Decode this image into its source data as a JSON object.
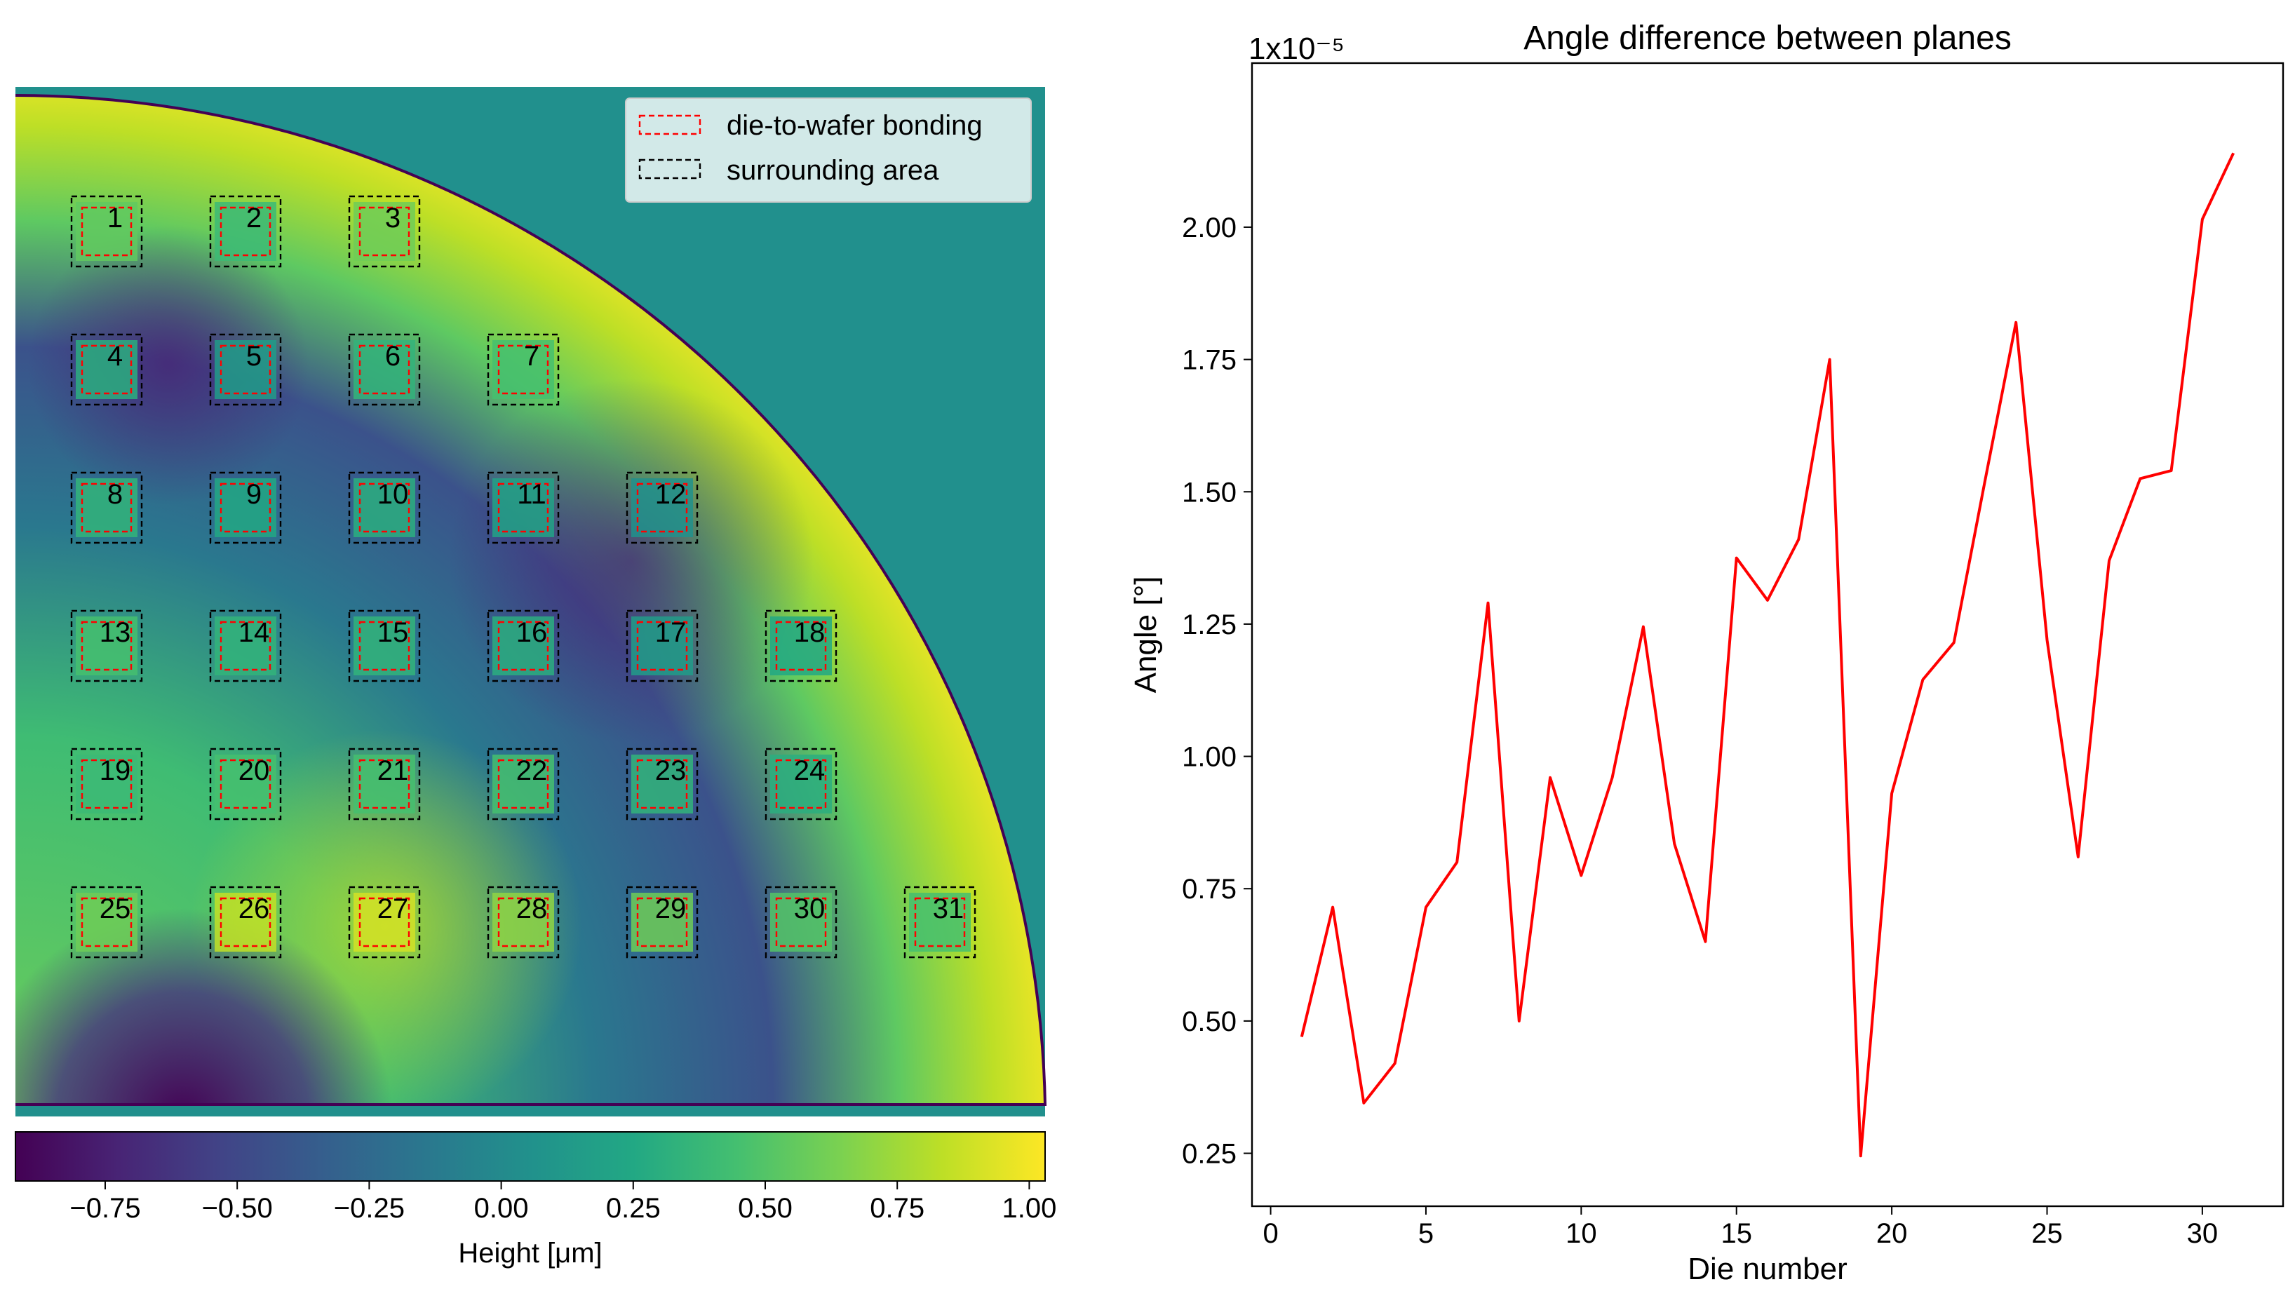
{
  "chart_data": [
    {
      "type": "heatmap",
      "title": "",
      "colorbar": {
        "label": "Height [μm]",
        "range": [
          -0.92,
          1.03
        ],
        "colormap": "viridis",
        "ticks": [
          -0.75,
          -0.5,
          -0.25,
          0.0,
          0.25,
          0.5,
          0.75,
          1.0
        ],
        "tick_labels": [
          "−0.75",
          "−0.50",
          "−0.25",
          "0.00",
          "0.25",
          "0.50",
          "0.75",
          "1.00"
        ]
      },
      "background_color": "#21908d",
      "legend": {
        "position": "top-right",
        "entries": [
          {
            "label": "die-to-wafer bonding",
            "color": "#ff0000",
            "style": "dashed"
          },
          {
            "label": "surrounding area",
            "color": "#000000",
            "style": "dashed"
          }
        ]
      },
      "dies": [
        {
          "label": "1",
          "row": 0,
          "col": 0,
          "height": 0.55
        },
        {
          "label": "2",
          "row": 0,
          "col": 1,
          "height": 0.4
        },
        {
          "label": "3",
          "row": 0,
          "col": 2,
          "height": 0.6
        },
        {
          "label": "4",
          "row": 1,
          "col": 0,
          "height": 0.3
        },
        {
          "label": "5",
          "row": 1,
          "col": 1,
          "height": 0.15
        },
        {
          "label": "6",
          "row": 1,
          "col": 2,
          "height": 0.35
        },
        {
          "label": "7",
          "row": 1,
          "col": 3,
          "height": 0.45
        },
        {
          "label": "8",
          "row": 2,
          "col": 0,
          "height": 0.35
        },
        {
          "label": "9",
          "row": 2,
          "col": 1,
          "height": 0.25
        },
        {
          "label": "10",
          "row": 2,
          "col": 2,
          "height": 0.3
        },
        {
          "label": "11",
          "row": 2,
          "col": 3,
          "height": 0.2
        },
        {
          "label": "12",
          "row": 2,
          "col": 4,
          "height": 0.05
        },
        {
          "label": "13",
          "row": 3,
          "col": 0,
          "height": 0.45
        },
        {
          "label": "14",
          "row": 3,
          "col": 1,
          "height": 0.35
        },
        {
          "label": "15",
          "row": 3,
          "col": 2,
          "height": 0.35
        },
        {
          "label": "16",
          "row": 3,
          "col": 3,
          "height": 0.3
        },
        {
          "label": "17",
          "row": 3,
          "col": 4,
          "height": 0.15
        },
        {
          "label": "18",
          "row": 3,
          "col": 5,
          "height": 0.25
        },
        {
          "label": "19",
          "row": 4,
          "col": 0,
          "height": 0.4
        },
        {
          "label": "20",
          "row": 4,
          "col": 1,
          "height": 0.45
        },
        {
          "label": "21",
          "row": 4,
          "col": 2,
          "height": 0.45
        },
        {
          "label": "22",
          "row": 4,
          "col": 3,
          "height": 0.45
        },
        {
          "label": "23",
          "row": 4,
          "col": 4,
          "height": 0.35
        },
        {
          "label": "24",
          "row": 4,
          "col": 5,
          "height": 0.3
        },
        {
          "label": "25",
          "row": 5,
          "col": 0,
          "height": 0.6
        },
        {
          "label": "26",
          "row": 5,
          "col": 1,
          "height": 0.85
        },
        {
          "label": "27",
          "row": 5,
          "col": 2,
          "height": 0.9
        },
        {
          "label": "28",
          "row": 5,
          "col": 3,
          "height": 0.7
        },
        {
          "label": "29",
          "row": 5,
          "col": 4,
          "height": 0.6
        },
        {
          "label": "30",
          "row": 5,
          "col": 5,
          "height": 0.5
        },
        {
          "label": "31",
          "row": 5,
          "col": 6,
          "height": 0.45
        }
      ]
    },
    {
      "type": "line",
      "title": "Angle difference between planes",
      "xlabel": "Die number",
      "ylabel": "Angle [°]",
      "offset_label": "1x10⁻⁵",
      "xlim": [
        -0.6,
        32.6
      ],
      "ylim": [
        0.15,
        2.31
      ],
      "xticks": [
        0,
        5,
        10,
        15,
        20,
        25,
        30
      ],
      "yticks": [
        0.25,
        0.5,
        0.75,
        1.0,
        1.25,
        1.5,
        1.75,
        2.0
      ],
      "ytick_labels": [
        "0.25",
        "0.50",
        "0.75",
        "1.00",
        "1.25",
        "1.50",
        "1.75",
        "2.00"
      ],
      "series": [
        {
          "name": "angle",
          "color": "#ff0000",
          "x": [
            1,
            2,
            3,
            4,
            5,
            6,
            7,
            8,
            9,
            10,
            11,
            12,
            13,
            14,
            15,
            16,
            17,
            18,
            19,
            20,
            21,
            22,
            23,
            24,
            25,
            26,
            27,
            28,
            29,
            30,
            31
          ],
          "values": [
            0.47,
            0.715,
            0.345,
            0.42,
            0.715,
            0.8,
            1.29,
            0.5,
            0.96,
            0.775,
            0.96,
            1.245,
            0.835,
            0.65,
            1.375,
            1.295,
            1.41,
            1.75,
            0.245,
            0.93,
            1.145,
            1.215,
            1.52,
            1.82,
            1.22,
            0.81,
            1.37,
            1.525,
            1.54,
            2.015,
            2.14
          ]
        }
      ]
    }
  ]
}
